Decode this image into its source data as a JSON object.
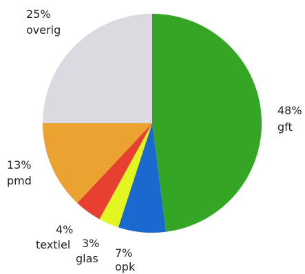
{
  "chart_data": {
    "type": "pie",
    "title": "",
    "start_angle": "12 o'clock",
    "direction": "clockwise",
    "slices": [
      {
        "label": "gft",
        "percent_label": "48%",
        "value": 48,
        "color": "#34a524"
      },
      {
        "label": "opk",
        "percent_label": "7%",
        "value": 7,
        "color": "#1b68cf"
      },
      {
        "label": "glas",
        "percent_label": "3%",
        "value": 3,
        "color": "#e3f520"
      },
      {
        "label": "textiel",
        "percent_label": "4%",
        "value": 4,
        "color": "#e84030"
      },
      {
        "label": "pmd",
        "percent_label": "13%",
        "value": 13,
        "color": "#eca230"
      },
      {
        "label": "overig",
        "percent_label": "25%",
        "value": 25,
        "color": "#dcdae0"
      }
    ]
  }
}
